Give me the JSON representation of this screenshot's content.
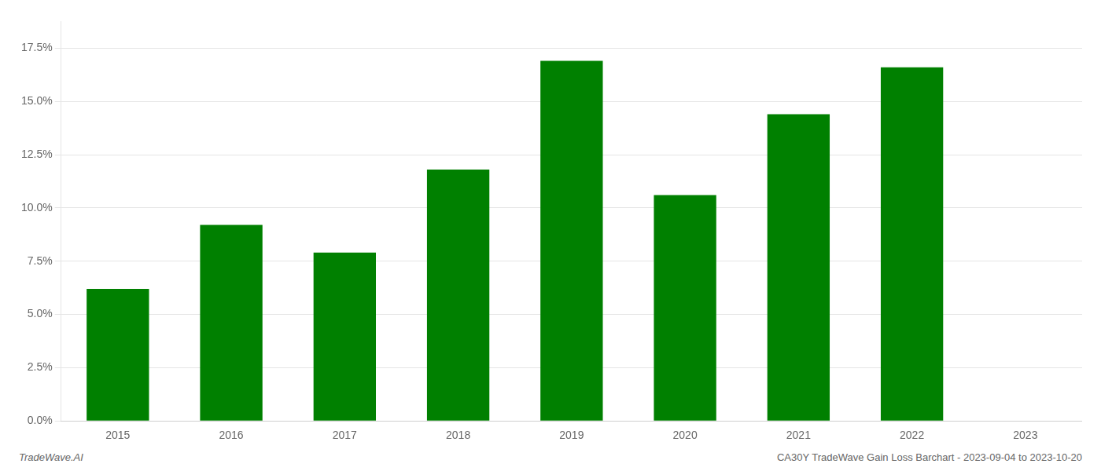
{
  "chart_data": {
    "type": "bar",
    "categories": [
      "2015",
      "2016",
      "2017",
      "2018",
      "2019",
      "2020",
      "2021",
      "2022",
      "2023"
    ],
    "values": [
      0.062,
      0.092,
      0.079,
      0.118,
      0.169,
      0.106,
      0.144,
      0.166,
      null
    ],
    "color": "#008000",
    "ylim": [
      0,
      0.1875
    ],
    "yticks": [
      {
        "value": 0.0,
        "label": "0.0%"
      },
      {
        "value": 0.025,
        "label": "2.5%"
      },
      {
        "value": 0.05,
        "label": "5.0%"
      },
      {
        "value": 0.075,
        "label": "7.5%"
      },
      {
        "value": 0.1,
        "label": "10.0%"
      },
      {
        "value": 0.125,
        "label": "12.5%"
      },
      {
        "value": 0.15,
        "label": "15.0%"
      },
      {
        "value": 0.175,
        "label": "17.5%"
      }
    ],
    "grid": true,
    "annotations": [
      "TradeWave.AI",
      "CA30Y TradeWave Gain Loss Barchart - 2023-09-04 to 2023-10-20"
    ]
  }
}
